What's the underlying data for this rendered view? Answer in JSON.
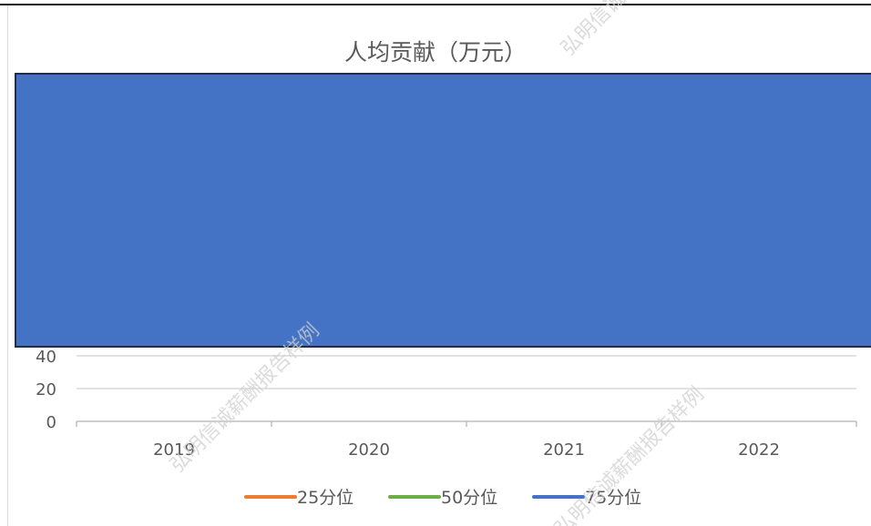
{
  "chart_data": {
    "type": "line",
    "title": "人均贡献（万元）",
    "xlabel": "",
    "ylabel": "",
    "categories": [
      "2019",
      "2020",
      "2021",
      "2022"
    ],
    "y_ticks_visible": [
      "40",
      "20",
      "0"
    ],
    "ylim": [
      0,
      40
    ],
    "grid": true,
    "legend_position": "bottom",
    "series": [
      {
        "name": "25分位",
        "color": "#ED7D31"
      },
      {
        "name": "50分位",
        "color": "#70AD47"
      },
      {
        "name": "75分位",
        "color": "#4472C4"
      }
    ],
    "overlay_color": "#4472C4"
  },
  "watermark": {
    "text": "弘明信诚薪酬报告样例"
  }
}
